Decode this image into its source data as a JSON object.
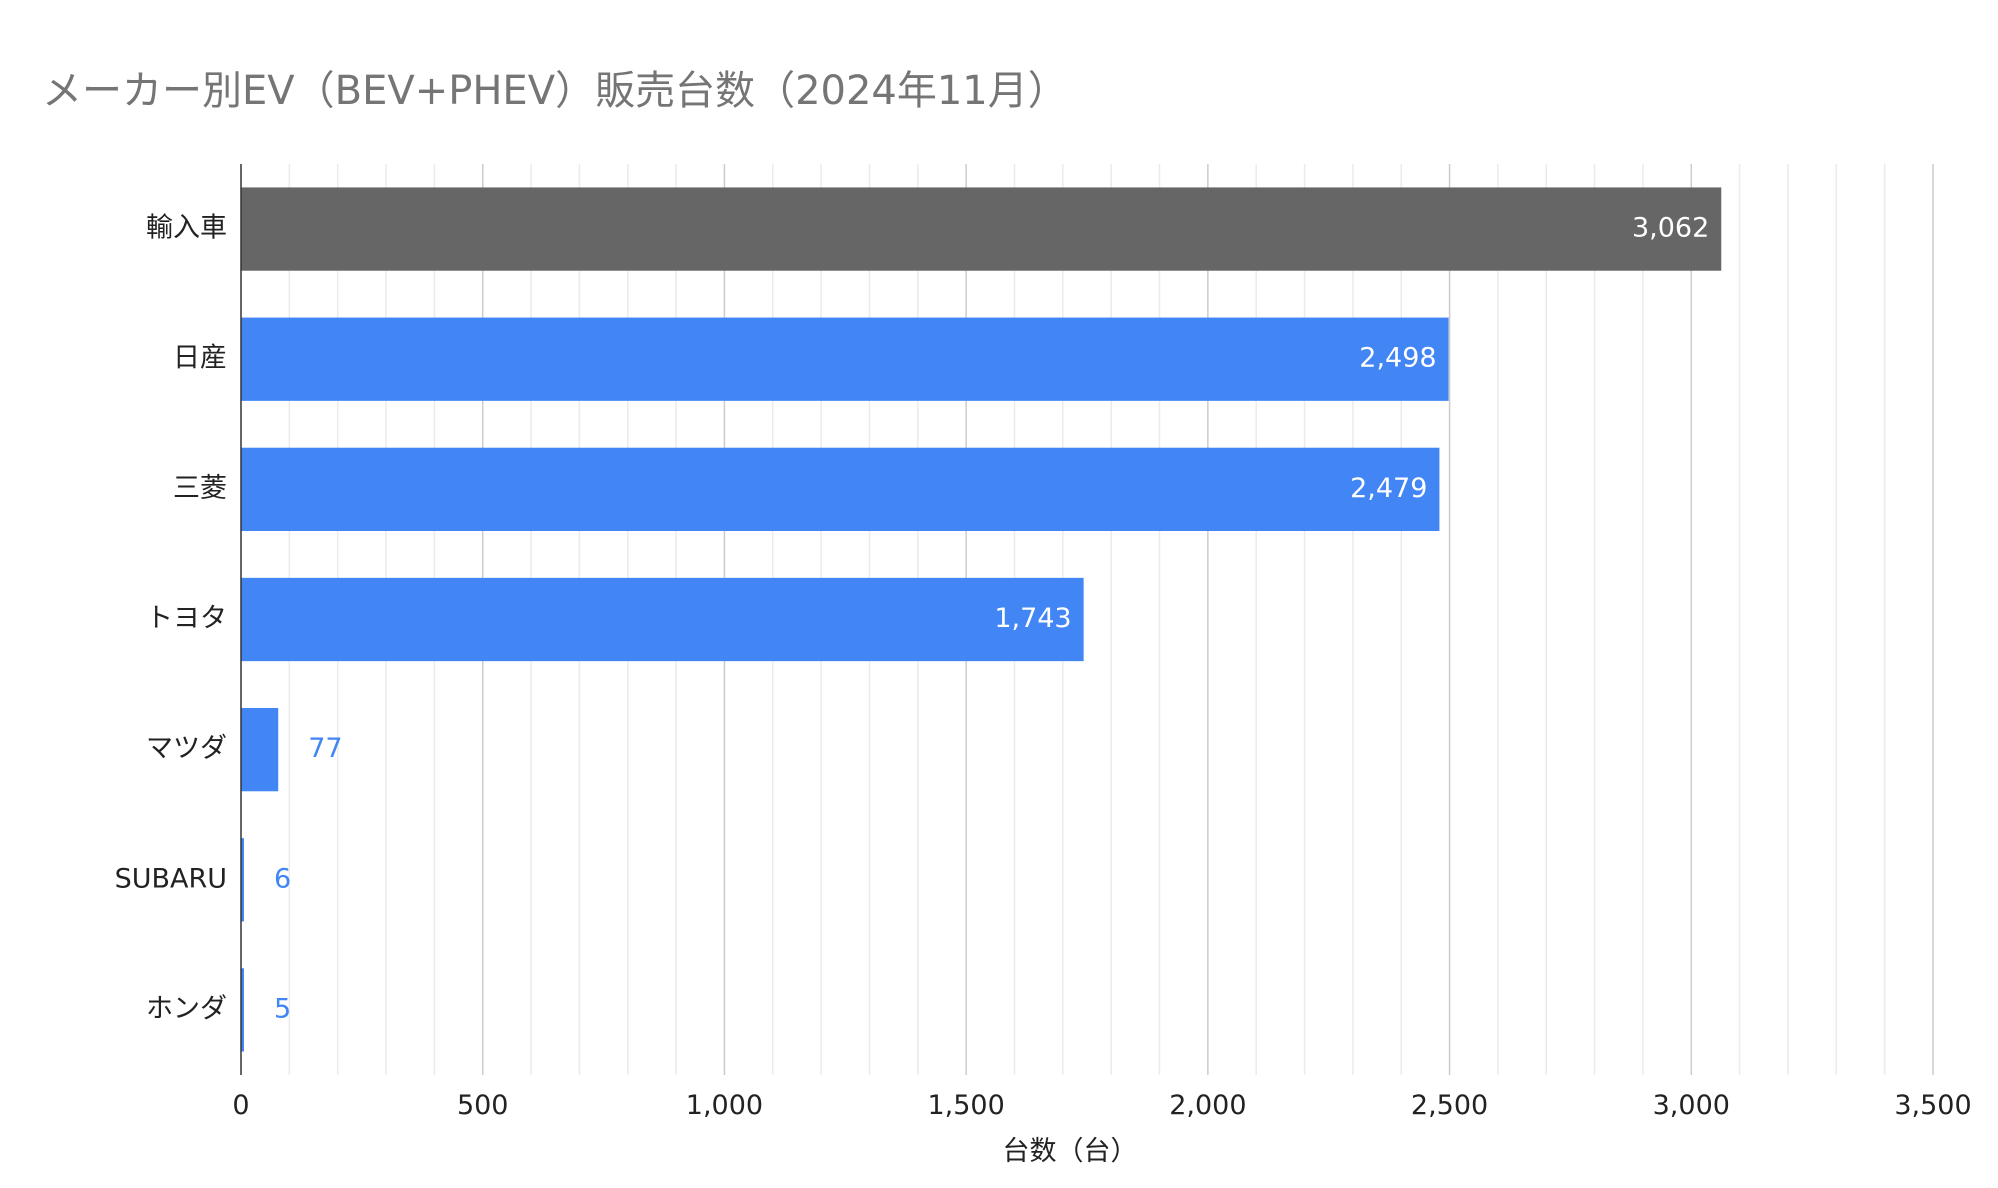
{
  "chart_data": {
    "type": "bar",
    "orientation": "horizontal",
    "title": "メーカー別EV（BEV+PHEV）販売台数（2024年11月）",
    "xlabel": "台数（台）",
    "ylabel": "",
    "xlim": [
      0,
      3500
    ],
    "x_ticks": [
      0,
      500,
      1000,
      1500,
      2000,
      2500,
      3000,
      3500
    ],
    "x_tick_labels": [
      "0",
      "500",
      "1,000",
      "1,500",
      "2,000",
      "2,500",
      "3,000",
      "3,500"
    ],
    "grid": true,
    "legend": "none",
    "categories": [
      "輸入車",
      "日産",
      "三菱",
      "トヨタ",
      "マツダ",
      "SUBARU",
      "ホンダ"
    ],
    "values": [
      3062,
      2498,
      2479,
      1743,
      77,
      6,
      5
    ],
    "value_labels": [
      "3,062",
      "2,498",
      "2,479",
      "1,743",
      "77",
      "6",
      "5"
    ],
    "colors": [
      "#666666",
      "#4285f4",
      "#4285f4",
      "#4285f4",
      "#4285f4",
      "#4285f4",
      "#4285f4"
    ],
    "label_color_inside": "#ffffff",
    "label_color_outside": "#4285f4"
  }
}
